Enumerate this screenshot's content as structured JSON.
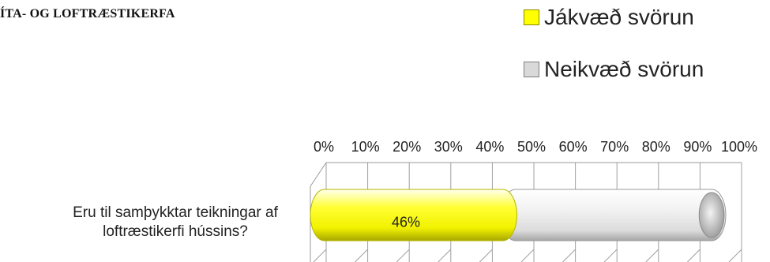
{
  "title": "ÍTA- OG LOFTRÆSTIKERFA",
  "chart_data": {
    "type": "bar",
    "orientation": "horizontal",
    "stacked": true,
    "percent": true,
    "categories": [
      "Eru til samþykktar teikningar af loftræstikerfi hússins?"
    ],
    "series": [
      {
        "name": "Jákvæð svörun",
        "values": [
          46
        ],
        "color": "#FFFF00"
      },
      {
        "name": "Neikvæð svörun",
        "values": [
          54
        ],
        "color": "#D9D9D9"
      }
    ],
    "data_labels": [
      "46%"
    ],
    "x_ticks": [
      "0%",
      "10%",
      "20%",
      "30%",
      "40%",
      "50%",
      "60%",
      "70%",
      "80%",
      "90%",
      "100%"
    ],
    "xlim": [
      0,
      100
    ],
    "grid": true,
    "legend_position": "top-right"
  }
}
